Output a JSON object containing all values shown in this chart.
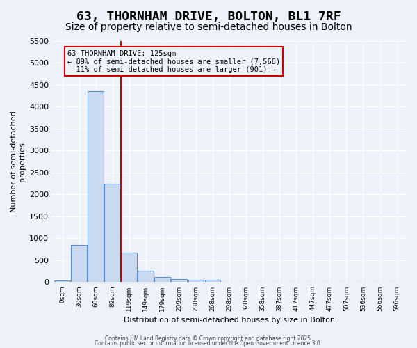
{
  "title": "63, THORNHAM DRIVE, BOLTON, BL1 7RF",
  "subtitle": "Size of property relative to semi-detached houses in Bolton",
  "xlabel": "Distribution of semi-detached houses by size in Bolton",
  "ylabel": "Number of semi-detached\nproperties",
  "bin_labels": [
    "0sqm",
    "30sqm",
    "60sqm",
    "89sqm",
    "119sqm",
    "149sqm",
    "179sqm",
    "209sqm",
    "238sqm",
    "268sqm",
    "298sqm",
    "328sqm",
    "358sqm",
    "387sqm",
    "417sqm",
    "447sqm",
    "477sqm",
    "507sqm",
    "536sqm",
    "566sqm",
    "596sqm"
  ],
  "bar_values": [
    40,
    850,
    4350,
    2250,
    680,
    255,
    120,
    65,
    55,
    50,
    0,
    0,
    0,
    0,
    0,
    0,
    0,
    0,
    0,
    0,
    0
  ],
  "bar_color": "#c9d9f0",
  "bar_edge_color": "#5b8fcc",
  "ylim": [
    0,
    5500
  ],
  "yticks": [
    0,
    500,
    1000,
    1500,
    2000,
    2500,
    3000,
    3500,
    4000,
    4500,
    5000,
    5500
  ],
  "property_bin_index": 4,
  "vline_color": "#cc0000",
  "annotation_text": "63 THORNHAM DRIVE: 125sqm\n← 89% of semi-detached houses are smaller (7,568)\n  11% of semi-detached houses are larger (901) →",
  "footer1": "Contains HM Land Registry data © Crown copyright and database right 2025.",
  "footer2": "Contains public sector information licensed under the Open Government Licence 3.0.",
  "bg_color": "#eef2fb",
  "grid_color": "#ffffff",
  "title_fontsize": 13,
  "subtitle_fontsize": 10,
  "label_fontsize": 8
}
